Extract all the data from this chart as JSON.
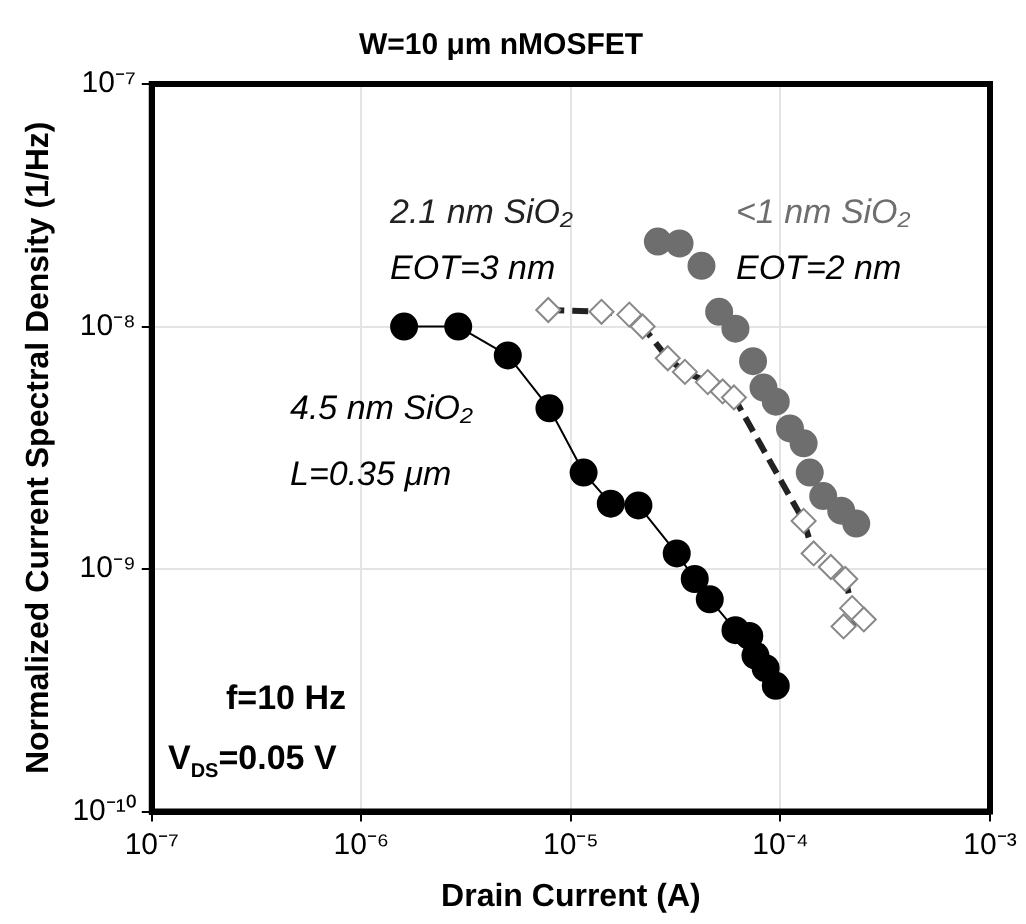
{
  "chart_data": {
    "type": "scatter",
    "title": "W=10 μm nMOSFET",
    "xlabel": "Drain Current (A)",
    "ylabel": "Normalized Current Spectral Density (1/Hz)",
    "log": "xy",
    "grid": true,
    "legend": false,
    "xlim": [
      1e-07,
      0.001
    ],
    "ylim": [
      1e-10,
      1e-07
    ],
    "xticks": [
      {
        "value": 1e-07,
        "label": "10⁻⁷"
      },
      {
        "value": 1e-06,
        "label": "10⁻⁶"
      },
      {
        "value": 1e-05,
        "label": "10⁻⁵"
      },
      {
        "value": 0.0001,
        "label": "10⁻⁴"
      },
      {
        "value": 0.001,
        "label": "10⁻³"
      }
    ],
    "yticks": [
      {
        "value": 1e-10,
        "label": "10⁻¹⁰"
      },
      {
        "value": 1e-09,
        "label": "10⁻⁹"
      },
      {
        "value": 1e-08,
        "label": "10⁻⁸"
      },
      {
        "value": 1e-07,
        "label": "10⁻⁷"
      }
    ],
    "series": [
      {
        "name": "4.5 nm SiO₂",
        "type": "line",
        "color": "#000000",
        "marker": "circle",
        "line_style": "solid",
        "x": [
          1.6e-06,
          2.9e-06,
          5e-06,
          7.9e-06,
          1.15e-05,
          1.55e-05,
          2.1e-05,
          3.2e-05,
          3.9e-05,
          4.6e-05,
          6.1e-05,
          7.1e-05,
          7.6e-05,
          8.5e-05,
          9.5e-05
        ],
        "values": [
          1e-08,
          1e-08,
          7.6e-09,
          4.6e-09,
          2.5e-09,
          1.86e-09,
          1.83e-09,
          1.16e-09,
          9.1e-10,
          7.5e-10,
          5.6e-10,
          5.3e-10,
          4.4e-10,
          3.9e-10,
          3.3e-10
        ]
      },
      {
        "name": "2.1 nm SiO₂",
        "type": "line",
        "color": "#222222",
        "marker": "diamond",
        "line_style": "dashed",
        "x": [
          7.8e-06,
          1.4e-05,
          1.9e-05,
          2.2e-05,
          2.9e-05,
          3.5e-05,
          4.5e-05,
          5.3e-05,
          6e-05,
          0.000129,
          0.000144,
          0.000174,
          0.000204,
          0.00022,
          0.00025,
          0.0002
        ],
        "values": [
          1.17e-08,
          1.15e-08,
          1.12e-08,
          1e-08,
          7.4e-09,
          6.5e-09,
          5.9e-09,
          5.4e-09,
          5.1e-09,
          1.58e-09,
          1.16e-09,
          1.02e-09,
          9.1e-10,
          6.9e-10,
          6.2e-10,
          5.8e-10
        ]
      },
      {
        "name": "<1 nm SiO₂",
        "type": "scatter",
        "color": "#6e6e6e",
        "marker": "circle",
        "x": [
          2.6e-05,
          3.3e-05,
          4.2e-05,
          5.1e-05,
          6.1e-05,
          7.4e-05,
          8.3e-05,
          9.5e-05,
          0.000111,
          0.000129,
          0.000138,
          0.00016,
          0.000195,
          0.00023
        ],
        "values": [
          2.24e-08,
          2.2e-08,
          1.78e-08,
          1.15e-08,
          9.8e-09,
          7.2e-09,
          5.6e-09,
          4.9e-09,
          3.8e-09,
          3.3e-09,
          2.5e-09,
          2e-09,
          1.74e-09,
          1.54e-09
        ]
      }
    ],
    "annotations": [
      "EOT=3 nm",
      "L=0.35 μm",
      "EOT=2 nm",
      "f=10 Hz",
      "V$_{DS}$=0.05 V"
    ]
  }
}
